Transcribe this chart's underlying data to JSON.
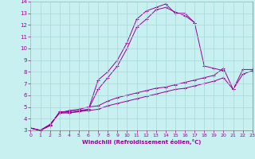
{
  "xlabel": "Windchill (Refroidissement éolien,°C)",
  "bg_color": "#c8f0f0",
  "grid_color": "#a8d8d8",
  "line_color": "#990099",
  "xlim": [
    0,
    23
  ],
  "ylim": [
    3,
    14
  ],
  "xticks": [
    0,
    1,
    2,
    3,
    4,
    5,
    6,
    7,
    8,
    9,
    10,
    11,
    12,
    13,
    14,
    15,
    16,
    17,
    18,
    19,
    20,
    21,
    22,
    23
  ],
  "yticks": [
    3,
    4,
    5,
    6,
    7,
    8,
    9,
    10,
    11,
    12,
    13,
    14
  ],
  "line1_x": [
    0,
    1,
    2,
    3,
    4,
    5,
    6,
    7,
    8,
    9,
    10,
    11,
    12,
    13,
    14,
    15,
    16,
    17
  ],
  "line1_y": [
    3.2,
    3.0,
    3.4,
    4.6,
    4.6,
    4.7,
    4.8,
    7.3,
    8.0,
    9.0,
    10.5,
    12.5,
    13.2,
    13.5,
    13.8,
    13.0,
    13.0,
    12.2
  ],
  "line2_x": [
    0,
    1,
    2,
    3,
    4,
    5,
    6,
    7,
    8,
    9,
    10,
    11,
    12,
    13,
    14,
    15,
    16,
    17,
    18,
    19,
    20
  ],
  "line2_y": [
    3.2,
    3.0,
    3.5,
    4.5,
    4.5,
    4.6,
    4.8,
    6.5,
    7.5,
    8.5,
    10.0,
    11.8,
    12.5,
    13.3,
    13.5,
    13.1,
    12.8,
    12.2,
    8.5,
    8.3,
    8.1
  ],
  "line3_x": [
    0,
    1,
    2,
    3,
    4,
    5,
    6,
    7,
    8,
    9,
    10,
    11,
    12,
    13,
    14,
    15,
    16,
    17,
    18,
    19,
    20,
    21,
    22,
    23
  ],
  "line3_y": [
    3.2,
    3.0,
    3.5,
    4.5,
    4.7,
    4.8,
    5.0,
    5.1,
    5.5,
    5.8,
    6.0,
    6.2,
    6.4,
    6.6,
    6.7,
    6.9,
    7.1,
    7.3,
    7.5,
    7.7,
    8.3,
    6.5,
    8.2,
    8.2
  ],
  "line4_x": [
    0,
    1,
    2,
    3,
    4,
    5,
    6,
    7,
    8,
    9,
    10,
    11,
    12,
    13,
    14,
    15,
    16,
    17,
    18,
    19,
    20,
    21,
    22,
    23
  ],
  "line4_y": [
    3.2,
    3.0,
    3.4,
    4.5,
    4.5,
    4.6,
    4.7,
    4.8,
    5.1,
    5.3,
    5.5,
    5.7,
    5.9,
    6.1,
    6.3,
    6.5,
    6.6,
    6.8,
    7.0,
    7.2,
    7.5,
    6.5,
    7.8,
    8.1
  ]
}
